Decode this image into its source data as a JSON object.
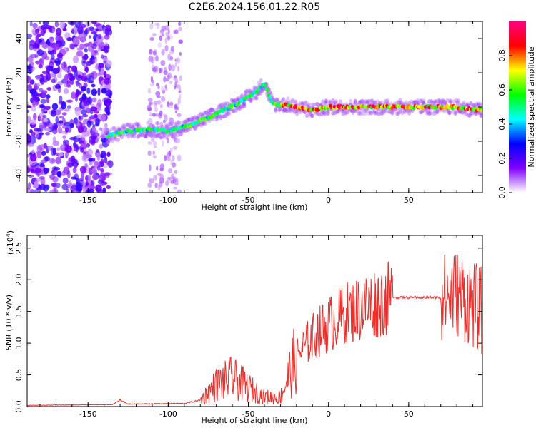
{
  "title": "C2E6.2024.156.01.22.R05",
  "chart_data": [
    {
      "type": "heatmap",
      "xlabel": "Height of straight line (km)",
      "ylabel": "Frequency (Hz)",
      "xlim": [
        -188,
        96
      ],
      "ylim": [
        -50,
        50
      ],
      "xticks": [
        -150,
        -100,
        -50,
        0,
        50
      ],
      "yticks": [
        -40,
        -20,
        0,
        20,
        40
      ],
      "colorbar": {
        "label": "Normalized spectral amplitude",
        "range": [
          0.0,
          1.0
        ],
        "ticks": [
          "0.0",
          "0.2",
          "0.4",
          "0.6",
          "0.8"
        ],
        "colors": [
          "#ffffff",
          "#8000ff",
          "#0000ff",
          "#00ffff",
          "#00ff00",
          "#ffff00",
          "#ff0000",
          "#ff0080"
        ]
      },
      "ridge": {
        "description_points": [
          {
            "x": -138,
            "y": -17
          },
          {
            "x": -125,
            "y": -14
          },
          {
            "x": -110,
            "y": -13
          },
          {
            "x": -100,
            "y": -14
          },
          {
            "x": -85,
            "y": -10
          },
          {
            "x": -70,
            "y": -4
          },
          {
            "x": -55,
            "y": 3
          },
          {
            "x": -45,
            "y": 9
          },
          {
            "x": -40,
            "y": 14
          },
          {
            "x": -35,
            "y": 2
          },
          {
            "x": -25,
            "y": 1
          },
          {
            "x": -10,
            "y": -2
          },
          {
            "x": 0,
            "y": 0
          },
          {
            "x": 20,
            "y": 0
          },
          {
            "x": 50,
            "y": 0
          },
          {
            "x": 80,
            "y": 0
          },
          {
            "x": 96,
            "y": -2
          }
        ]
      }
    },
    {
      "type": "line",
      "xlabel": "Height of straight line (km)",
      "ylabel": "SNR (10 * v/v)",
      "scale_label": "(x10",
      "scale_exp": "4",
      "scale_close": ")",
      "xlim": [
        -188,
        96
      ],
      "ylim": [
        0,
        2.7
      ],
      "xticks": [
        -150,
        -100,
        -50,
        0,
        50
      ],
      "yticks": [
        "0.0",
        "0.5",
        "1.0",
        "1.5",
        "2.0",
        "2.5"
      ],
      "ytick_values": [
        0,
        0.5,
        1.0,
        1.5,
        2.0,
        2.5
      ],
      "color": "#e8302c",
      "envelope": [
        {
          "x": -188,
          "y": 0.02
        },
        {
          "x": -135,
          "y": 0.03
        },
        {
          "x": -130,
          "y": 0.1
        },
        {
          "x": -125,
          "y": 0.04
        },
        {
          "x": -90,
          "y": 0.05
        },
        {
          "x": -80,
          "y": 0.1
        },
        {
          "x": -70,
          "y": 0.35
        },
        {
          "x": -60,
          "y": 0.45
        },
        {
          "x": -50,
          "y": 0.3
        },
        {
          "x": -40,
          "y": 0.15
        },
        {
          "x": -30,
          "y": 0.15
        },
        {
          "x": -20,
          "y": 0.8
        },
        {
          "x": -10,
          "y": 1.1
        },
        {
          "x": 0,
          "y": 1.3
        },
        {
          "x": 10,
          "y": 1.45
        },
        {
          "x": 20,
          "y": 1.55
        },
        {
          "x": 30,
          "y": 1.65
        },
        {
          "x": 40,
          "y": 1.72
        },
        {
          "x": 50,
          "y": 1.72
        },
        {
          "x": 60,
          "y": 1.72
        },
        {
          "x": 70,
          "y": 1.72
        },
        {
          "x": 80,
          "y": 1.8
        },
        {
          "x": 96,
          "y": 1.5
        }
      ]
    }
  ]
}
